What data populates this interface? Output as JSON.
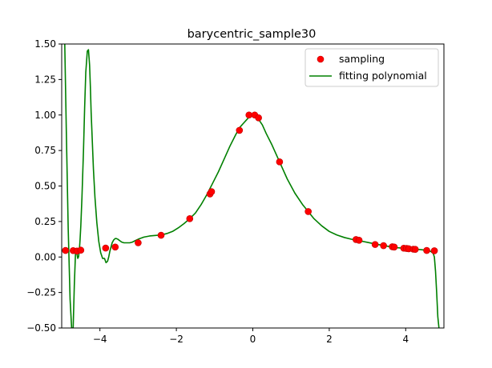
{
  "chart_data": {
    "type": "scatter",
    "title": "barycentric_sample30",
    "xlabel": "",
    "ylabel": "",
    "xlim": [
      -5,
      5
    ],
    "ylim": [
      -0.5,
      1.5
    ],
    "grid": false,
    "legend_position": "upper right",
    "x_ticks": [
      -4,
      -2,
      0,
      2,
      4
    ],
    "x_tick_labels": [
      "−4",
      "−2",
      "0",
      "2",
      "4"
    ],
    "y_ticks": [
      -0.5,
      -0.25,
      0,
      0.25,
      0.5,
      0.75,
      1.0,
      1.25,
      1.5
    ],
    "y_tick_labels": [
      "−0.50",
      "−0.25",
      "0.00",
      "0.25",
      "0.50",
      "0.75",
      "1.00",
      "1.25",
      "1.50"
    ],
    "colors": {
      "sampling": "#ff0000",
      "sampling_edge": "#bf0000",
      "fitting": "#008000",
      "axes": "#000000"
    },
    "series": [
      {
        "name": "sampling",
        "kind": "points",
        "x": [
          -4.9,
          -4.7,
          -4.6,
          -4.5,
          -3.85,
          -3.6,
          -3.0,
          -2.4,
          -1.65,
          -1.12,
          -1.08,
          -0.35,
          -0.1,
          0.05,
          0.15,
          0.7,
          1.45,
          2.7,
          2.78,
          3.2,
          3.42,
          3.65,
          3.7,
          3.95,
          4.02,
          4.08,
          4.2,
          4.25,
          4.55,
          4.75
        ],
        "y": [
          0.046,
          0.045,
          0.042,
          0.048,
          0.063,
          0.07,
          0.1,
          0.153,
          0.27,
          0.444,
          0.46,
          0.892,
          1.0,
          1.0,
          0.98,
          0.67,
          0.32,
          0.123,
          0.118,
          0.088,
          0.08,
          0.072,
          0.07,
          0.062,
          0.06,
          0.058,
          0.055,
          0.054,
          0.046,
          0.044
        ]
      },
      {
        "name": "fitting polynomial",
        "kind": "line",
        "x": [
          -4.92,
          -4.88,
          -4.83,
          -4.78,
          -4.74,
          -4.7,
          -4.67,
          -4.64,
          -4.62,
          -4.6,
          -4.58,
          -4.56,
          -4.54,
          -4.52,
          -4.5,
          -4.47,
          -4.43,
          -4.4,
          -4.37,
          -4.33,
          -4.3,
          -4.27,
          -4.25,
          -4.23,
          -4.2,
          -4.17,
          -4.13,
          -4.08,
          -4.03,
          -3.98,
          -3.93,
          -3.88,
          -3.84,
          -3.8,
          -3.77,
          -3.74,
          -3.71,
          -3.68,
          -3.64,
          -3.6,
          -3.57,
          -3.53,
          -3.48,
          -3.43,
          -3.37,
          -3.3,
          -3.22,
          -3.15,
          -3.08,
          -3.0,
          -2.85,
          -2.7,
          -2.55,
          -2.4,
          -2.25,
          -2.1,
          -1.95,
          -1.8,
          -1.65,
          -1.5,
          -1.35,
          -1.2,
          -1.05,
          -0.9,
          -0.75,
          -0.6,
          -0.45,
          -0.35,
          -0.25,
          -0.15,
          -0.08,
          0.0,
          0.08,
          0.15,
          0.25,
          0.35,
          0.5,
          0.7,
          0.9,
          1.1,
          1.3,
          1.45,
          1.6,
          1.8,
          2.0,
          2.2,
          2.4,
          2.6,
          2.8,
          3.0,
          3.2,
          3.4,
          3.6,
          3.8,
          4.0,
          4.2,
          4.4,
          4.55,
          4.65,
          4.72,
          4.75,
          4.78,
          4.81,
          4.84,
          4.87
        ],
        "y": [
          1.5,
          0.9,
          0.2,
          -0.3,
          -0.5,
          -0.5,
          -0.2,
          0.02,
          0.05,
          0.02,
          -0.01,
          0.0,
          0.04,
          0.12,
          0.22,
          0.42,
          0.75,
          1.05,
          1.3,
          1.45,
          1.46,
          1.35,
          1.2,
          1.02,
          0.82,
          0.62,
          0.42,
          0.24,
          0.11,
          0.03,
          -0.01,
          -0.01,
          -0.04,
          -0.03,
          0.0,
          0.04,
          0.07,
          0.1,
          0.12,
          0.13,
          0.13,
          0.125,
          0.115,
          0.105,
          0.1,
          0.1,
          0.1,
          0.105,
          0.115,
          0.125,
          0.14,
          0.148,
          0.152,
          0.155,
          0.165,
          0.18,
          0.205,
          0.235,
          0.27,
          0.31,
          0.37,
          0.44,
          0.52,
          0.6,
          0.69,
          0.78,
          0.86,
          0.91,
          0.94,
          0.97,
          0.99,
          1.0,
          0.99,
          0.97,
          0.93,
          0.87,
          0.79,
          0.67,
          0.55,
          0.45,
          0.37,
          0.32,
          0.27,
          0.22,
          0.18,
          0.155,
          0.137,
          0.124,
          0.114,
          0.103,
          0.092,
          0.082,
          0.072,
          0.065,
          0.06,
          0.056,
          0.052,
          0.047,
          0.04,
          0.025,
          0.0,
          -0.1,
          -0.25,
          -0.42,
          -0.5
        ]
      }
    ]
  }
}
